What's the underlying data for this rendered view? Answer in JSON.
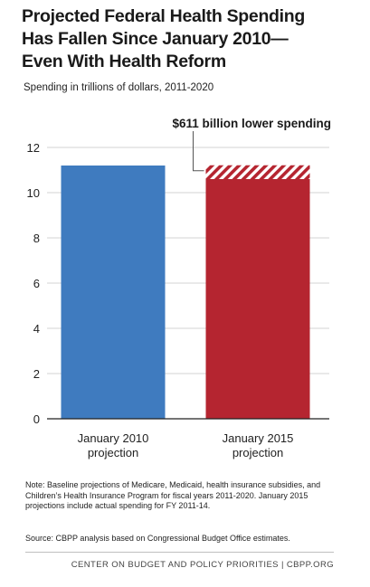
{
  "header": {
    "title_lines": [
      "Projected Federal Health Spending",
      "Has Fallen Since January 2010—",
      "Even With Health Reform"
    ],
    "subtitle": "Spending in trillions of dollars, 2011-2020"
  },
  "chart_data": {
    "type": "bar",
    "categories": [
      [
        "January 2010",
        "projection"
      ],
      [
        "January 2015",
        "projection"
      ]
    ],
    "values": [
      11.2,
      10.6
    ],
    "reduction_segment": {
      "category_index": 1,
      "value": 0.611,
      "pattern": "diagonal-hatch"
    },
    "colors": [
      "#3f7bbf",
      "#b52530"
    ],
    "ylim": [
      0,
      12
    ],
    "yticks": [
      0,
      2,
      4,
      6,
      8,
      10,
      12
    ],
    "grid": true,
    "annotation": "$611 billion lower spending"
  },
  "footnotes": {
    "note": "Note: Baseline projections of Medicare, Medicaid, health insurance subsidies, and Children’s Health Insurance Program for fiscal years 2011-2020. January 2015 projections include actual spending for FY 2011-14.",
    "source": "Source: CBPP analysis based on Congressional Budget Office estimates."
  },
  "footer": {
    "text": "CENTER ON BUDGET AND POLICY PRIORITIES | CBPP.ORG"
  }
}
